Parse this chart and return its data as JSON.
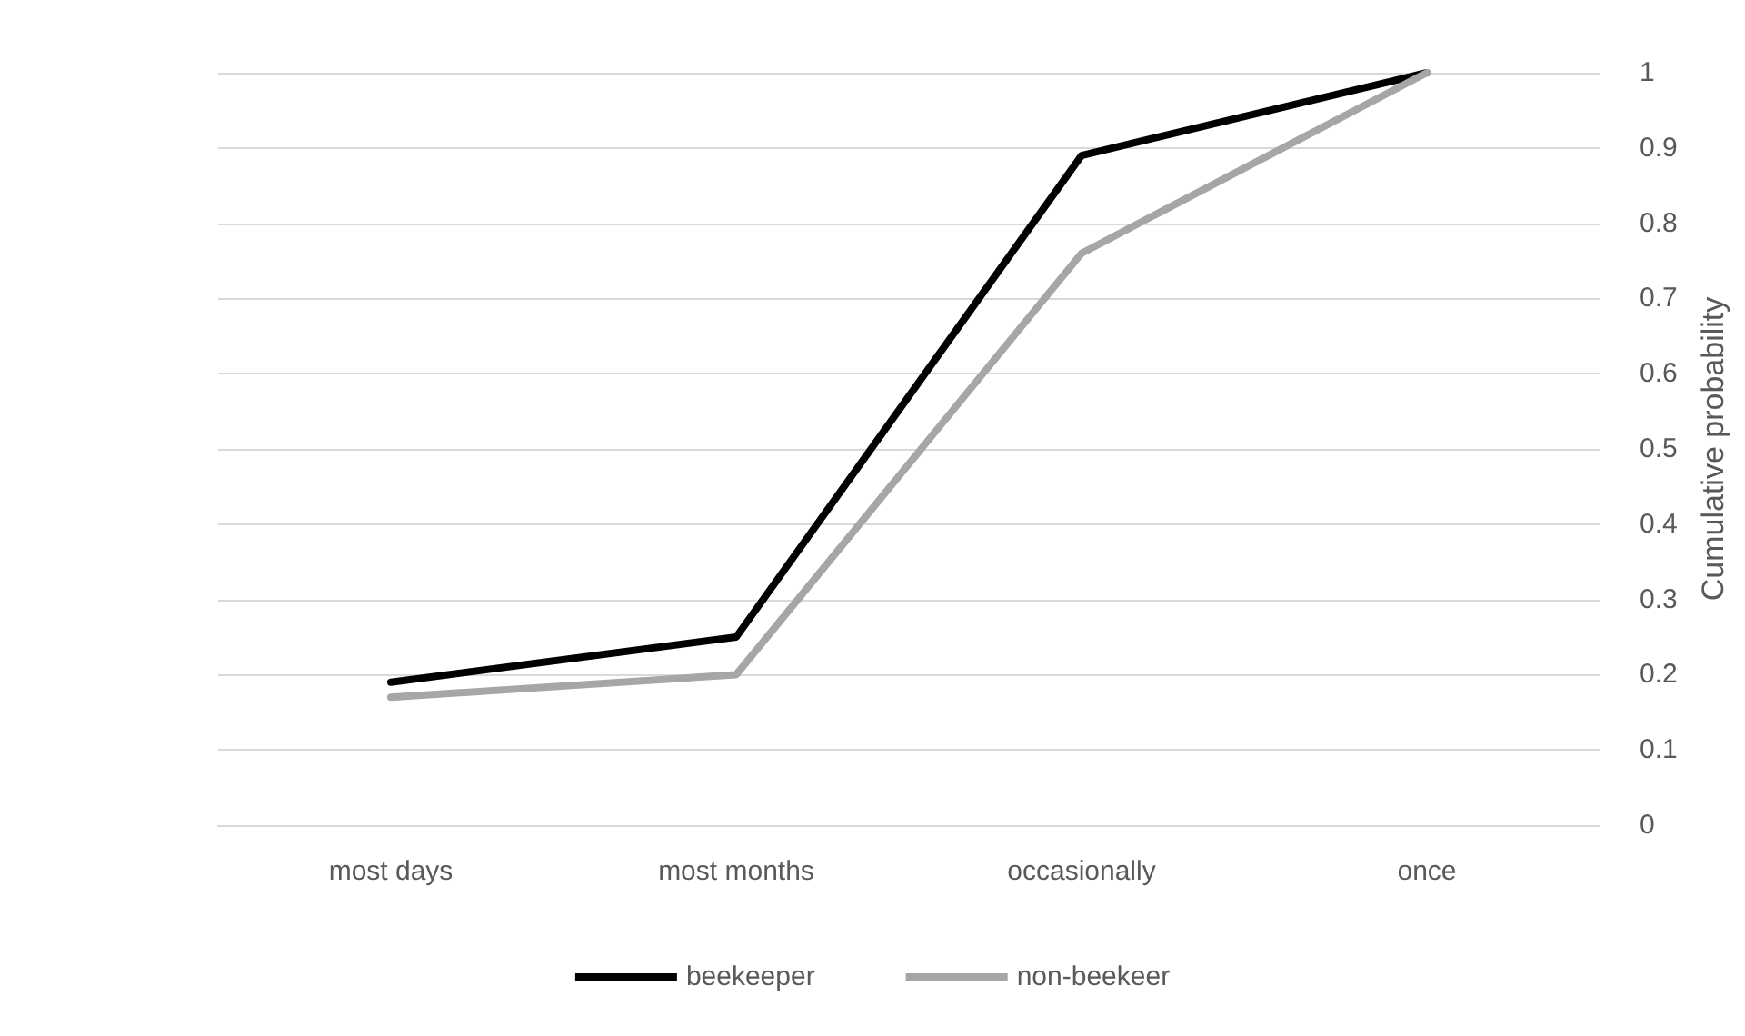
{
  "chart_data": {
    "type": "line",
    "ylabel": "Cumulative probability",
    "categories": [
      "most days",
      "most months",
      "occasionally",
      "once"
    ],
    "series": [
      {
        "name": "beekeeper",
        "color": "#000000",
        "values": [
          0.19,
          0.25,
          0.89,
          1
        ]
      },
      {
        "name": "non-beekeer",
        "color": "#a6a6a6",
        "values": [
          0.17,
          0.2,
          0.76,
          1
        ]
      }
    ],
    "ylim": [
      0,
      1
    ],
    "yticks": [
      0,
      0.1,
      0.2,
      0.3,
      0.4,
      0.5,
      0.6,
      0.7,
      0.8,
      0.9,
      1
    ],
    "grid": "y",
    "legend": "bottom",
    "marker": "none",
    "line_style": "solid"
  }
}
